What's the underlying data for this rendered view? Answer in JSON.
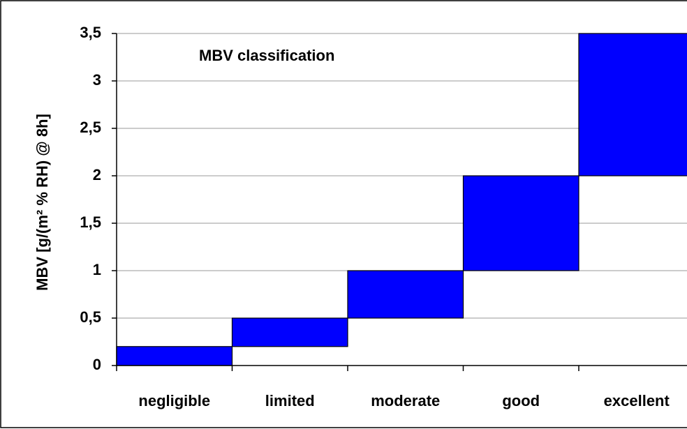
{
  "chart_data": {
    "type": "floating-bar",
    "title": "MBV classification",
    "y_label": "MBV [g/(m² % RH) @ 8h]",
    "categories": [
      "negligible",
      "limited",
      "moderate",
      "good",
      "excellent"
    ],
    "low": [
      0,
      0.2,
      0.5,
      1,
      2
    ],
    "high": [
      0.2,
      0.5,
      1,
      2,
      3.5
    ],
    "color": "#0000ff",
    "ylim": [
      0,
      3.5
    ],
    "yticks": [
      0,
      {
        "value": 0.5,
        "label": "0,5"
      },
      1,
      {
        "value": 1.5,
        "label": "1,5"
      },
      2,
      {
        "value": 2.5,
        "label": "2,5"
      },
      3,
      {
        "value": 3.5,
        "label": "3,5"
      }
    ],
    "grid": true
  }
}
